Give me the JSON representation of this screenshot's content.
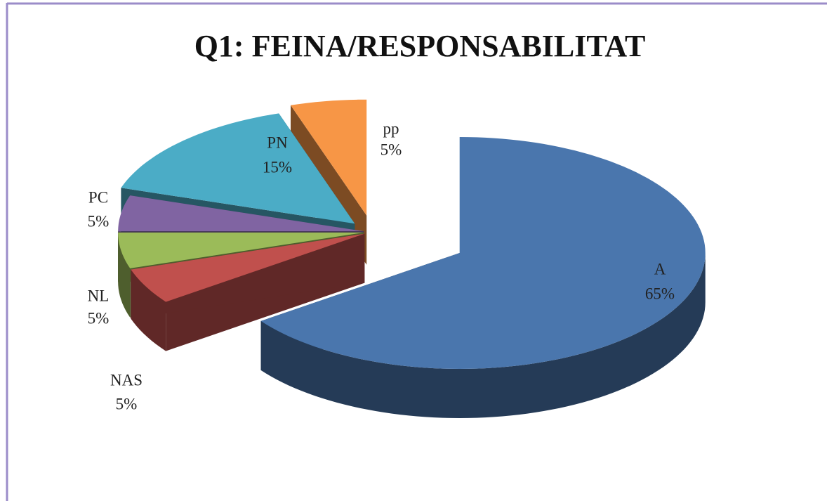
{
  "chart_data": {
    "type": "pie",
    "title": "Q1: FEINA/RESPONSABILITAT",
    "categories": [
      "A",
      "NAS",
      "NL",
      "PC",
      "PN",
      "pp"
    ],
    "values": [
      65,
      5,
      5,
      5,
      15,
      5
    ],
    "value_labels": [
      "65%",
      "5%",
      "5%",
      "5%",
      "15%",
      "5%"
    ],
    "colors": [
      "#4a76ad",
      "#c0504d",
      "#9bbb59",
      "#8064a2",
      "#4bacc6",
      "#f79646"
    ]
  }
}
